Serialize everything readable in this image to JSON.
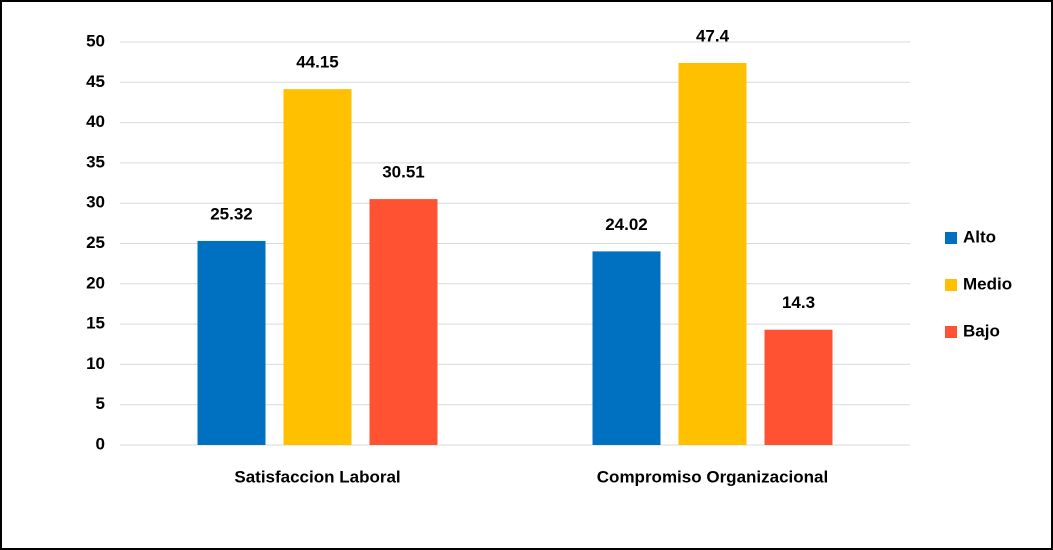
{
  "chart_data": {
    "type": "bar",
    "categories": [
      "Satisfaccion Laboral",
      "Compromiso Organizacional"
    ],
    "series": [
      {
        "name": "Alto",
        "color": "#0070c0",
        "values": [
          25.32,
          24.02
        ]
      },
      {
        "name": "Medio",
        "color": "#ffc000",
        "values": [
          44.15,
          47.4
        ]
      },
      {
        "name": "Bajo",
        "color": "#ff5233",
        "values": [
          30.51,
          14.3
        ]
      }
    ],
    "ylim": [
      0,
      50
    ],
    "yticks": [
      0,
      5,
      10,
      15,
      20,
      25,
      30,
      35,
      40,
      45,
      50
    ],
    "grid": true,
    "legend": "right"
  }
}
